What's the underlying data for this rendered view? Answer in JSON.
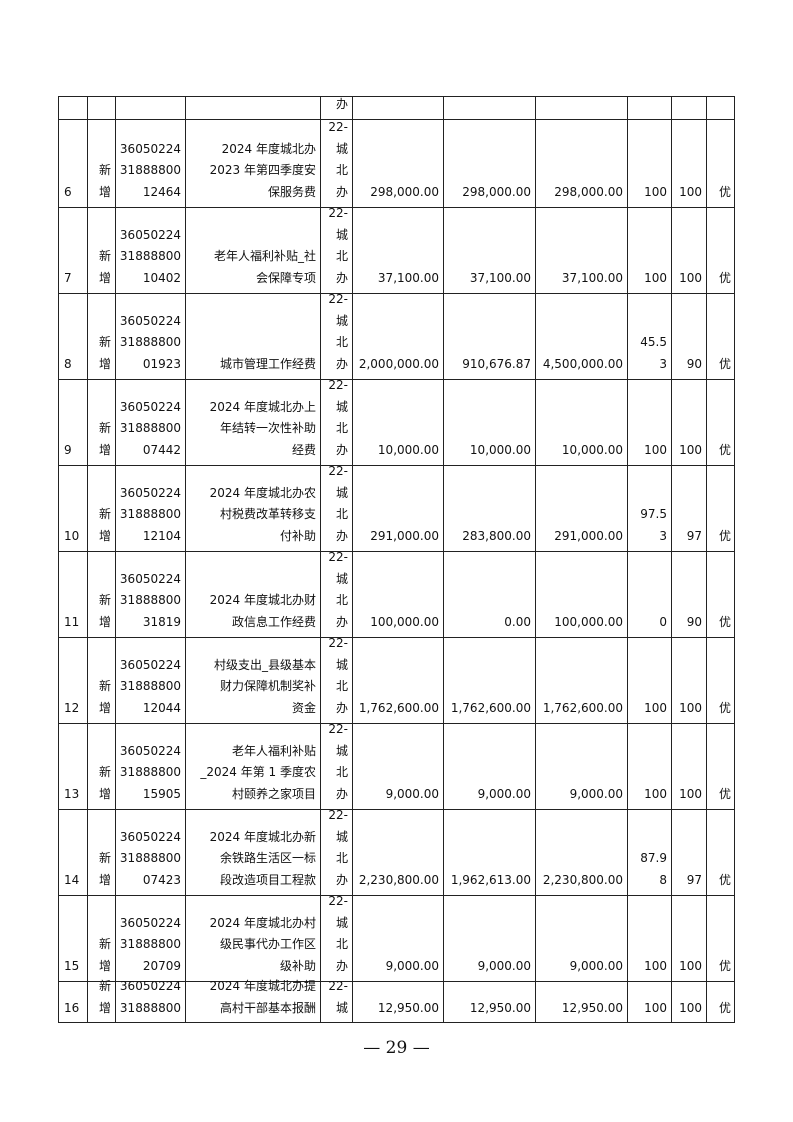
{
  "table": {
    "rows": [
      {
        "cells": [
          [],
          [],
          [],
          [],
          [
            "办"
          ],
          [],
          [],
          [],
          [],
          [],
          []
        ]
      },
      {
        "cells": [
          [
            "6"
          ],
          [
            "新",
            "增"
          ],
          [
            "36050224",
            "31888800",
            "12464"
          ],
          [
            "2024 年度城北办",
            "2023 年第四季度安",
            "保服务费"
          ],
          [
            "22-",
            "城",
            "北",
            "办"
          ],
          [
            "298,000.00"
          ],
          [
            "298,000.00"
          ],
          [
            "298,000.00"
          ],
          [
            "100"
          ],
          [
            "100"
          ],
          [
            "优"
          ]
        ]
      },
      {
        "cells": [
          [
            "7"
          ],
          [
            "新",
            "增"
          ],
          [
            "36050224",
            "31888800",
            "10402"
          ],
          [
            "老年人福利补贴_社",
            "会保障专项"
          ],
          [
            "22-",
            "城",
            "北",
            "办"
          ],
          [
            "37,100.00"
          ],
          [
            "37,100.00"
          ],
          [
            "37,100.00"
          ],
          [
            "100"
          ],
          [
            "100"
          ],
          [
            "优"
          ]
        ]
      },
      {
        "cells": [
          [
            "8"
          ],
          [
            "新",
            "增"
          ],
          [
            "36050224",
            "31888800",
            "01923"
          ],
          [
            "城市管理工作经费"
          ],
          [
            "22-",
            "城",
            "北",
            "办"
          ],
          [
            "2,000,000.00"
          ],
          [
            "910,676.87"
          ],
          [
            "4,500,000.00"
          ],
          [
            "45.5",
            "3"
          ],
          [
            "90"
          ],
          [
            "优"
          ]
        ]
      },
      {
        "cells": [
          [
            "9"
          ],
          [
            "新",
            "增"
          ],
          [
            "36050224",
            "31888800",
            "07442"
          ],
          [
            "2024 年度城北办上",
            "年结转一次性补助",
            "经费"
          ],
          [
            "22-",
            "城",
            "北",
            "办"
          ],
          [
            "10,000.00"
          ],
          [
            "10,000.00"
          ],
          [
            "10,000.00"
          ],
          [
            "100"
          ],
          [
            "100"
          ],
          [
            "优"
          ]
        ]
      },
      {
        "cells": [
          [
            "10"
          ],
          [
            "新",
            "增"
          ],
          [
            "36050224",
            "31888800",
            "12104"
          ],
          [
            "2024 年度城北办农",
            "村税费改革转移支",
            "付补助"
          ],
          [
            "22-",
            "城",
            "北",
            "办"
          ],
          [
            "291,000.00"
          ],
          [
            "283,800.00"
          ],
          [
            "291,000.00"
          ],
          [
            "97.5",
            "3"
          ],
          [
            "97"
          ],
          [
            "优"
          ]
        ]
      },
      {
        "cells": [
          [
            "11"
          ],
          [
            "新",
            "增"
          ],
          [
            "36050224",
            "31888800",
            "31819"
          ],
          [
            "2024 年度城北办财",
            "政信息工作经费"
          ],
          [
            "22-",
            "城",
            "北",
            "办"
          ],
          [
            "100,000.00"
          ],
          [
            "0.00"
          ],
          [
            "100,000.00"
          ],
          [
            "0"
          ],
          [
            "90"
          ],
          [
            "优"
          ]
        ]
      },
      {
        "cells": [
          [
            "12"
          ],
          [
            "新",
            "增"
          ],
          [
            "36050224",
            "31888800",
            "12044"
          ],
          [
            "村级支出_县级基本",
            "财力保障机制奖补",
            "资金"
          ],
          [
            "22-",
            "城",
            "北",
            "办"
          ],
          [
            "1,762,600.00"
          ],
          [
            "1,762,600.00"
          ],
          [
            "1,762,600.00"
          ],
          [
            "100"
          ],
          [
            "100"
          ],
          [
            "优"
          ]
        ]
      },
      {
        "cells": [
          [
            "13"
          ],
          [
            "新",
            "增"
          ],
          [
            "36050224",
            "31888800",
            "15905"
          ],
          [
            "老年人福利补贴",
            "_2024 年第 1 季度农",
            "村颐养之家项目"
          ],
          [
            "22-",
            "城",
            "北",
            "办"
          ],
          [
            "9,000.00"
          ],
          [
            "9,000.00"
          ],
          [
            "9,000.00"
          ],
          [
            "100"
          ],
          [
            "100"
          ],
          [
            "优"
          ]
        ]
      },
      {
        "cells": [
          [
            "14"
          ],
          [
            "新",
            "增"
          ],
          [
            "36050224",
            "31888800",
            "07423"
          ],
          [
            "2024 年度城北办新",
            "余铁路生活区一标",
            "段改造项目工程款"
          ],
          [
            "22-",
            "城",
            "北",
            "办"
          ],
          [
            "2,230,800.00"
          ],
          [
            "1,962,613.00"
          ],
          [
            "2,230,800.00"
          ],
          [
            "87.9",
            "8"
          ],
          [
            "97"
          ],
          [
            "优"
          ]
        ]
      },
      {
        "cells": [
          [
            "15"
          ],
          [
            "新",
            "增"
          ],
          [
            "36050224",
            "31888800",
            "20709"
          ],
          [
            "2024 年度城北办村",
            "级民事代办工作区",
            "级补助"
          ],
          [
            "22-",
            "城",
            "北",
            "办"
          ],
          [
            "9,000.00"
          ],
          [
            "9,000.00"
          ],
          [
            "9,000.00"
          ],
          [
            "100"
          ],
          [
            "100"
          ],
          [
            "优"
          ]
        ]
      },
      {
        "cells": [
          [
            "16"
          ],
          [
            "新",
            "增"
          ],
          [
            "36050224",
            "31888800"
          ],
          [
            "2024 年度城北办提",
            "高村干部基本报酬"
          ],
          [
            "22-",
            "城"
          ],
          [
            "12,950.00"
          ],
          [
            "12,950.00"
          ],
          [
            "12,950.00"
          ],
          [
            "100"
          ],
          [
            "100"
          ],
          [
            "优"
          ]
        ]
      }
    ]
  },
  "footer": {
    "page_number": "— 29 —"
  }
}
